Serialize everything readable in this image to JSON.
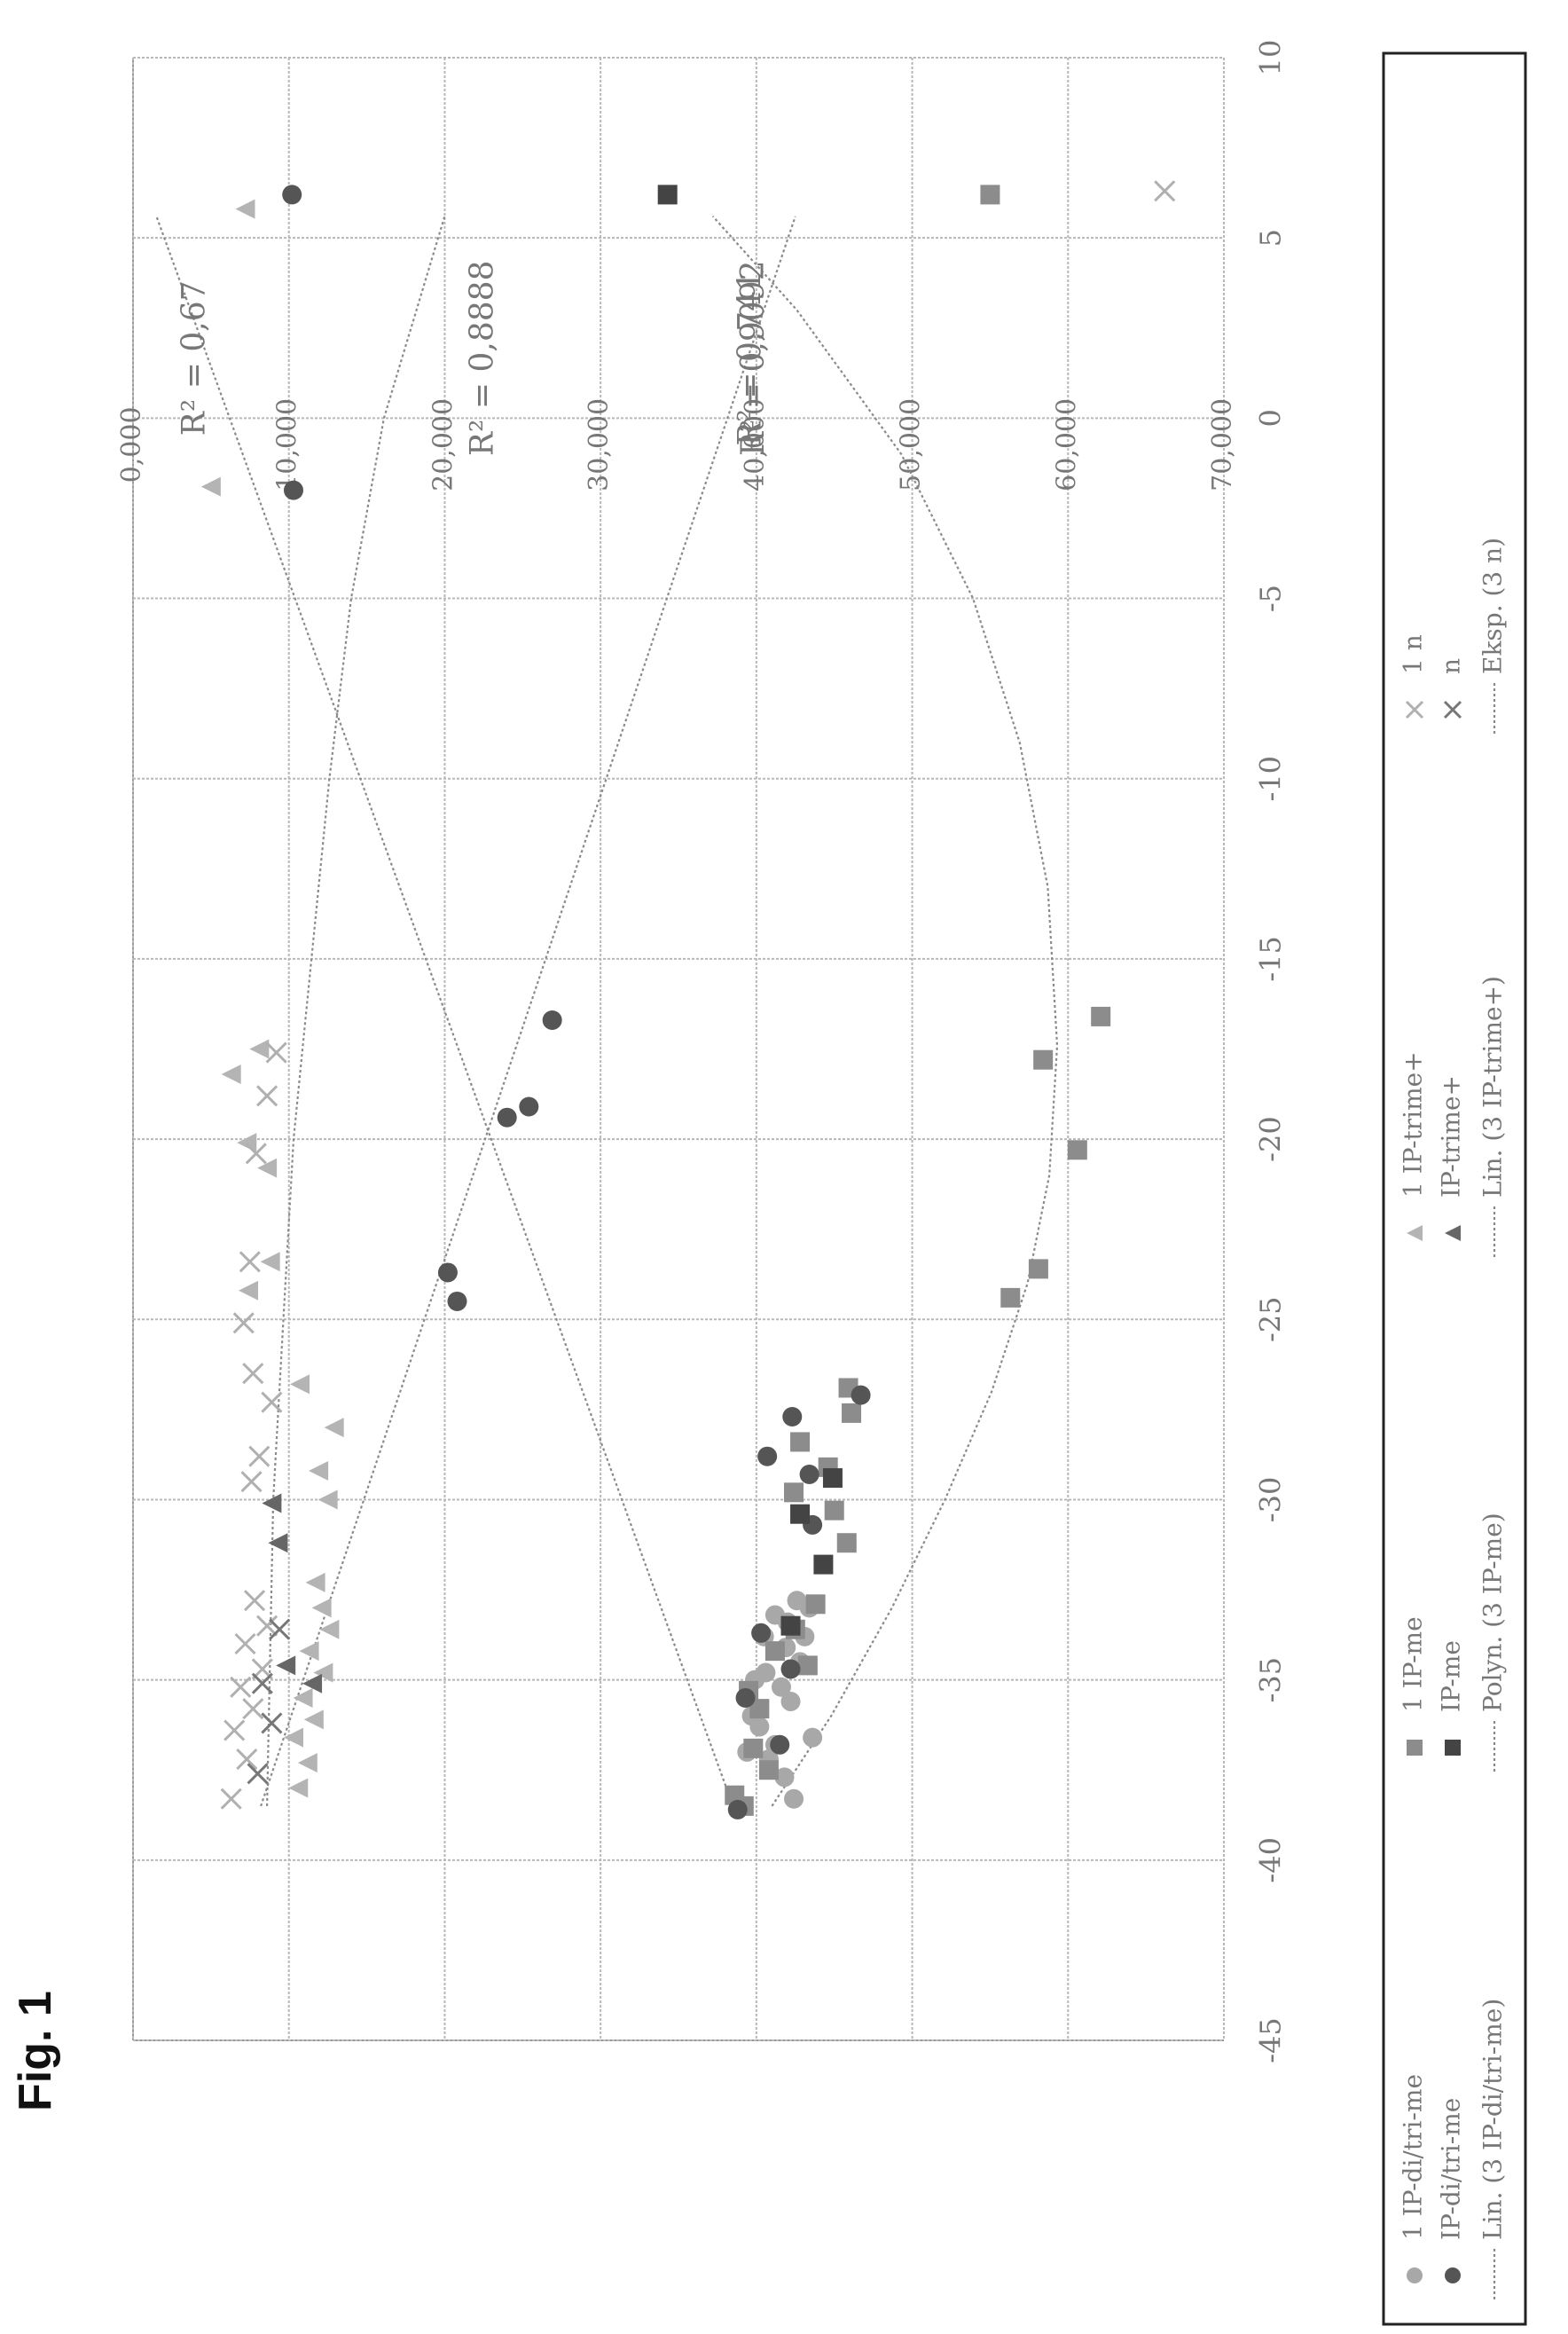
{
  "figure_label": "Fig. 1",
  "chart_data": {
    "type": "scatter",
    "title": "",
    "xlabel": "",
    "ylabel": "",
    "xlim": [
      -45,
      10
    ],
    "ylim": [
      0,
      70000
    ],
    "x_ticks": [
      -45,
      -40,
      -35,
      -30,
      -25,
      -20,
      -15,
      -10,
      -5,
      0,
      5,
      10
    ],
    "x_tick_labels": [
      "-45",
      "-40",
      "-35",
      "-30",
      "-25",
      "-20",
      "-15",
      "-10",
      "-5",
      "0",
      "5",
      "10"
    ],
    "y_ticks": [
      0,
      10000,
      20000,
      30000,
      40000,
      50000,
      60000,
      70000
    ],
    "y_tick_labels": [
      "0,000",
      "10,000",
      "20,000",
      "30,000",
      "40,000",
      "50,000",
      "60,000",
      "70,000"
    ],
    "grid": true,
    "legend_position": "bottom",
    "series": [
      {
        "name": "1 IP-di/tri-me",
        "marker": "circle",
        "color": "#a8a8a8",
        "points": [
          [
            -38.3,
            42400
          ],
          [
            -37.7,
            41800
          ],
          [
            -37.2,
            40800
          ],
          [
            -36.8,
            41200
          ],
          [
            -36.3,
            40200
          ],
          [
            -36,
            39700
          ],
          [
            -35.6,
            42200
          ],
          [
            -35.2,
            41600
          ],
          [
            -34.8,
            40600
          ],
          [
            -34.5,
            42800
          ],
          [
            -34.1,
            41900
          ],
          [
            -33.8,
            43100
          ],
          [
            -33.4,
            42000
          ],
          [
            -33,
            43400
          ],
          [
            -33.8,
            40500
          ],
          [
            -33.2,
            41200
          ],
          [
            -32.8,
            42600
          ],
          [
            -36.6,
            43600
          ],
          [
            -37,
            39400
          ],
          [
            -35,
            39900
          ]
        ]
      },
      {
        "name": "1 IP-me",
        "marker": "square",
        "color": "#8c8c8c",
        "points": [
          [
            -38.5,
            39200
          ],
          [
            -38.2,
            38600
          ],
          [
            -37.5,
            40800
          ],
          [
            -36.9,
            39800
          ],
          [
            -35.8,
            40200
          ],
          [
            -35.3,
            39500
          ],
          [
            -34.6,
            43300
          ],
          [
            -34.2,
            41200
          ],
          [
            -33.6,
            42500
          ],
          [
            -32.9,
            43800
          ],
          [
            -31.2,
            45800
          ],
          [
            -30.3,
            45000
          ],
          [
            -29.8,
            42400
          ],
          [
            -29.1,
            44600
          ],
          [
            -28.4,
            42800
          ],
          [
            -27.6,
            46100
          ],
          [
            -26.9,
            45900
          ],
          [
            -24.4,
            56300
          ],
          [
            -23.6,
            58100
          ],
          [
            -20.3,
            60600
          ],
          [
            -17.8,
            58400
          ],
          [
            -16.6,
            62100
          ],
          [
            6.2,
            55000
          ]
        ]
      },
      {
        "name": "1 IP-trime+",
        "marker": "triangle",
        "color": "#b4b4b4",
        "points": [
          [
            -38,
            10600
          ],
          [
            -37.3,
            11200
          ],
          [
            -36.6,
            10300
          ],
          [
            -36.1,
            11600
          ],
          [
            -35.5,
            10900
          ],
          [
            -34.8,
            12200
          ],
          [
            -34.2,
            11300
          ],
          [
            -33.6,
            12600
          ],
          [
            -33,
            12100
          ],
          [
            -32.3,
            11700
          ],
          [
            -30,
            12500
          ],
          [
            -29.2,
            11900
          ],
          [
            -28,
            12900
          ],
          [
            -26.8,
            10700
          ],
          [
            -24.2,
            7400
          ],
          [
            -23.4,
            8800
          ],
          [
            -20.8,
            8600
          ],
          [
            -20.1,
            7300
          ],
          [
            -18.2,
            6300
          ],
          [
            -17.5,
            8100
          ],
          [
            -1.9,
            5000
          ],
          [
            5.8,
            7200
          ]
        ]
      },
      {
        "name": "1 n",
        "marker": "x",
        "color": "#b0b0b0",
        "points": [
          [
            -38.3,
            6300
          ],
          [
            -37.2,
            7300
          ],
          [
            -36.4,
            6500
          ],
          [
            -35.8,
            7700
          ],
          [
            -35.2,
            6900
          ],
          [
            -34.7,
            8300
          ],
          [
            -34,
            7200
          ],
          [
            -33.5,
            8600
          ],
          [
            -32.8,
            7800
          ],
          [
            -29.5,
            7600
          ],
          [
            -28.8,
            8100
          ],
          [
            -27.3,
            8900
          ],
          [
            -26.5,
            7700
          ],
          [
            -25.1,
            7100
          ],
          [
            -23.4,
            7500
          ],
          [
            -20.4,
            7900
          ],
          [
            -18.8,
            8600
          ],
          [
            -17.6,
            9200
          ],
          [
            6.3,
            66200
          ]
        ]
      },
      {
        "name": "IP-di/tri-me",
        "marker": "circle",
        "color": "#555555",
        "points": [
          [
            -38.6,
            38800
          ],
          [
            -36.8,
            41500
          ],
          [
            -35.5,
            39300
          ],
          [
            -34.7,
            42200
          ],
          [
            -33.7,
            40300
          ],
          [
            -30.7,
            43600
          ],
          [
            -29.3,
            43400
          ],
          [
            -28.8,
            40700
          ],
          [
            -27.7,
            42300
          ],
          [
            -27.1,
            46700
          ],
          [
            -24.5,
            20800
          ],
          [
            -23.7,
            20200
          ],
          [
            -19.4,
            24000
          ],
          [
            -19.1,
            25400
          ],
          [
            -16.7,
            26900
          ],
          [
            -2,
            10300
          ],
          [
            6.2,
            10200
          ]
        ]
      },
      {
        "name": "IP-me",
        "marker": "square",
        "color": "#444444",
        "points": [
          [
            -33.5,
            42200
          ],
          [
            -31.8,
            44300
          ],
          [
            -30.4,
            42800
          ],
          [
            -29.4,
            44900
          ],
          [
            6.2,
            34300
          ]
        ]
      },
      {
        "name": "IP-trime+",
        "marker": "triangle",
        "color": "#666666",
        "points": [
          [
            -35.1,
            11500
          ],
          [
            -34.6,
            9800
          ],
          [
            -31.2,
            9300
          ],
          [
            -30.1,
            8900
          ]
        ]
      },
      {
        "name": "n",
        "marker": "x",
        "color": "#777777",
        "points": [
          [
            -37.6,
            8000
          ],
          [
            -36.2,
            8900
          ],
          [
            -35.1,
            8300
          ],
          [
            -33.6,
            9400
          ]
        ]
      }
    ],
    "trendlines": [
      {
        "name": "Lin. (3 IP-di/tri-me)",
        "kind": "linear",
        "x": [
          -38.5,
          5.6
        ],
        "y": [
          38500,
          1500
        ],
        "r2_label": "R² = 0,67"
      },
      {
        "name": "Polyn. (3 IP-me)",
        "kind": "polynomial",
        "x": [
          -38.5,
          -36,
          -33,
          -30,
          -27,
          -24,
          -21,
          -17.4,
          -13,
          -9,
          -5,
          -1,
          3,
          5.6
        ],
        "y": [
          41000,
          44800,
          48700,
          52100,
          55100,
          57400,
          58800,
          59300,
          58700,
          56900,
          53900,
          49300,
          42600,
          37200
        ],
        "r2_label": "R² = 0,741"
      },
      {
        "name": "Lin. (3 IP-trime+)",
        "kind": "linear",
        "x": [
          -38.5,
          5.6
        ],
        "y": [
          8200,
          42500
        ],
        "r2_label": "R² = 0,9092"
      },
      {
        "name": "Eksp. (3 n)",
        "kind": "exponential",
        "x": [
          -38.5,
          -30,
          -20,
          -10,
          -5,
          0,
          5.6
        ],
        "y": [
          8600,
          9000,
          10300,
          12600,
          14000,
          16100,
          20000
        ],
        "r2_label": "R² = 0,8888"
      }
    ],
    "legend": {
      "rows": [
        [
          {
            "marker": "circle",
            "color": "#a8a8a8",
            "label": "1 IP-di/tri-me"
          },
          {
            "marker": "square",
            "color": "#8c8c8c",
            "label": "1 IP-me"
          },
          {
            "marker": "triangle",
            "color": "#b4b4b4",
            "label": "1 IP-trime+"
          },
          {
            "marker": "x",
            "color": "#b0b0b0",
            "label": "1 n"
          }
        ],
        [
          {
            "marker": "circle",
            "color": "#555555",
            "label": "IP-di/tri-me"
          },
          {
            "marker": "square",
            "color": "#444444",
            "label": "IP-me"
          },
          {
            "marker": "triangle",
            "color": "#666666",
            "label": "IP-trime+"
          },
          {
            "marker": "x",
            "color": "#777777",
            "label": "n"
          }
        ],
        [
          {
            "marker": "line",
            "color": "#888888",
            "label": "Lin. (3 IP-di/tri-me)"
          },
          {
            "marker": "line",
            "color": "#888888",
            "label": "Polyn. (3 IP-me)"
          },
          {
            "marker": "line",
            "color": "#888888",
            "label": "Lin. (3 IP-trime+)"
          },
          {
            "marker": "line",
            "color": "#888888",
            "label": "Eksp. (3 n)"
          }
        ]
      ]
    },
    "colors": {
      "grid": "#b8b8b8",
      "frame": "#999999",
      "trend": "#8a8a8a",
      "legend_border": "#222222",
      "r2_text": "#222222"
    }
  }
}
